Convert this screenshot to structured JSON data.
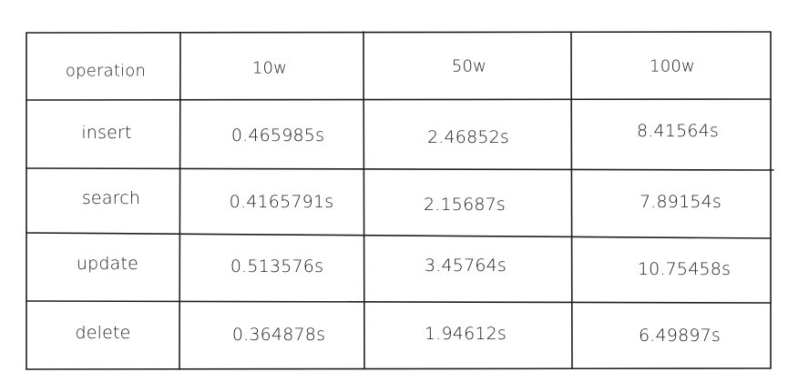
{
  "table": {
    "headers": [
      "operation",
      "10w",
      "50w",
      "100w"
    ],
    "rows": [
      {
        "operation": "insert",
        "values": [
          "0.465985s",
          "2.46852s",
          "8.41564s"
        ]
      },
      {
        "operation": "search",
        "values": [
          "0.4165791s",
          "2.15687s",
          "7.89154s"
        ]
      },
      {
        "operation": "update",
        "values": [
          "0.513576s",
          "3.45764s",
          "10.75458s"
        ]
      },
      {
        "operation": "delete",
        "values": [
          "0.364878s",
          "1.94612s",
          "6.49897s"
        ]
      }
    ]
  },
  "colors": {
    "stroke": "#1e1e1e",
    "background": "#ffffff"
  }
}
